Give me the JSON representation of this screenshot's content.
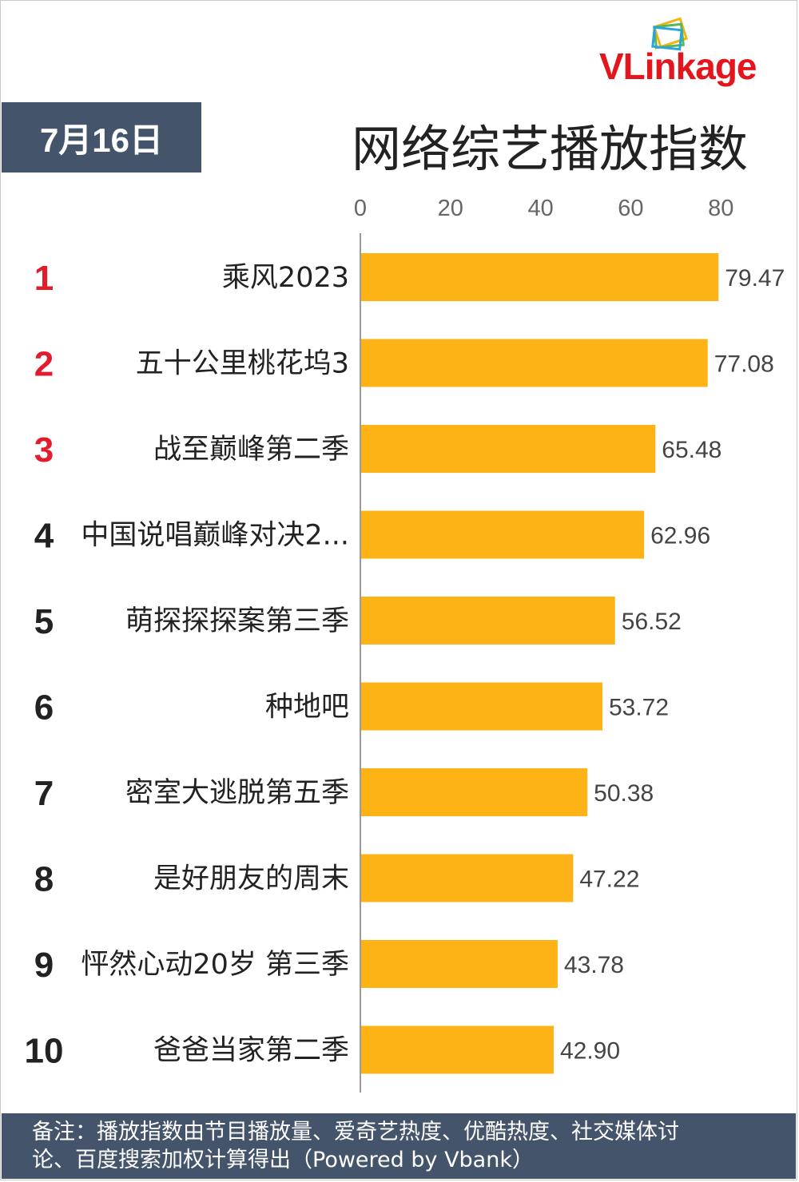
{
  "brand": {
    "logo_text": "VLinkage",
    "colors": {
      "logo_red": "#e4161d",
      "logo_marks": [
        "#f5b312",
        "#5ab55a",
        "#27a6de"
      ]
    }
  },
  "header": {
    "date_badge": "7月16日",
    "badge_color": "#44546a"
  },
  "chart_data": {
    "type": "bar",
    "orientation": "horizontal",
    "title": "网络综艺播放指数",
    "xlim": [
      0,
      80
    ],
    "xticks": [
      0,
      20,
      40,
      60,
      80
    ],
    "bar_color": "#fdb316",
    "rank_colors": {
      "top3": "#e21c2c",
      "default": "#222222"
    },
    "ranks": [
      "1",
      "2",
      "3",
      "4",
      "5",
      "6",
      "7",
      "8",
      "9",
      "10"
    ],
    "categories": [
      "乘风2023",
      "五十公里桃花坞3",
      "战至巅峰第二季",
      "中国说唱巅峰对决2...",
      "萌探探探案第三季",
      "种地吧",
      "密室大逃脱第五季",
      "是好朋友的周末",
      "怦然心动20岁 第三季",
      "爸爸当家第二季"
    ],
    "values": [
      79.47,
      77.08,
      65.48,
      62.96,
      56.52,
      53.72,
      50.38,
      47.22,
      43.78,
      42.9
    ],
    "value_labels": [
      "79.47",
      "77.08",
      "65.48",
      "62.96",
      "56.52",
      "53.72",
      "50.38",
      "47.22",
      "43.78",
      "42.90"
    ]
  },
  "footer": {
    "note_line1": "备注：播放指数由节目播放量、爱奇艺热度、优酷热度、社交媒体讨",
    "note_line2": "论、百度搜索加权计算得出（Powered by Vbank）"
  }
}
